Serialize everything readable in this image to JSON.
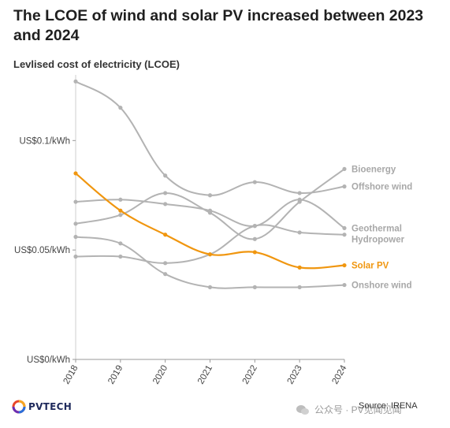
{
  "header": {
    "title": "The LCOE of wind and solar PV increased between 2023 and 2024",
    "subtitle": "Levlised cost of electricity (LCOE)"
  },
  "footer": {
    "logo_text": "PVTECH",
    "source": "Source: IRENA",
    "watermark": "公众号 · PV见闻见闻"
  },
  "colors": {
    "gray": "#b3b3b3",
    "label_gray": "#a8a8a8",
    "highlight": "#f0960f",
    "axis": "#cfcfcf"
  },
  "chart_data": {
    "type": "line",
    "title": "The LCOE of wind and solar PV increased between 2023 and 2024",
    "ylabel": "Levlised cost of electricity (LCOE)",
    "x": [
      "2018",
      "2019",
      "2020",
      "2021",
      "2022",
      "2023",
      "2024"
    ],
    "ylim": [
      0,
      0.13
    ],
    "yticks": [
      {
        "value": 0,
        "label": "US$0/kWh"
      },
      {
        "value": 0.05,
        "label": "US$0.05/kWh"
      },
      {
        "value": 0.1,
        "label": "US$0.1/kWh"
      }
    ],
    "grid": false,
    "series": [
      {
        "name": "Bioenergy",
        "highlight": false,
        "values": [
          0.062,
          0.066,
          0.076,
          0.067,
          0.055,
          0.072,
          0.087
        ]
      },
      {
        "name": "Offshore wind",
        "highlight": false,
        "values": [
          0.127,
          0.115,
          0.084,
          0.075,
          0.081,
          0.076,
          0.079
        ]
      },
      {
        "name": "Geothermal",
        "highlight": false,
        "values": [
          0.072,
          0.073,
          0.071,
          0.068,
          0.061,
          0.073,
          0.06
        ]
      },
      {
        "name": "Hydropower",
        "highlight": false,
        "values": [
          0.047,
          0.047,
          0.044,
          0.048,
          0.061,
          0.058,
          0.057
        ]
      },
      {
        "name": "Solar PV",
        "highlight": true,
        "values": [
          0.085,
          0.068,
          0.057,
          0.048,
          0.049,
          0.042,
          0.043
        ]
      },
      {
        "name": "Onshore wind",
        "highlight": false,
        "values": [
          0.056,
          0.053,
          0.039,
          0.033,
          0.033,
          0.033,
          0.034
        ]
      }
    ]
  }
}
